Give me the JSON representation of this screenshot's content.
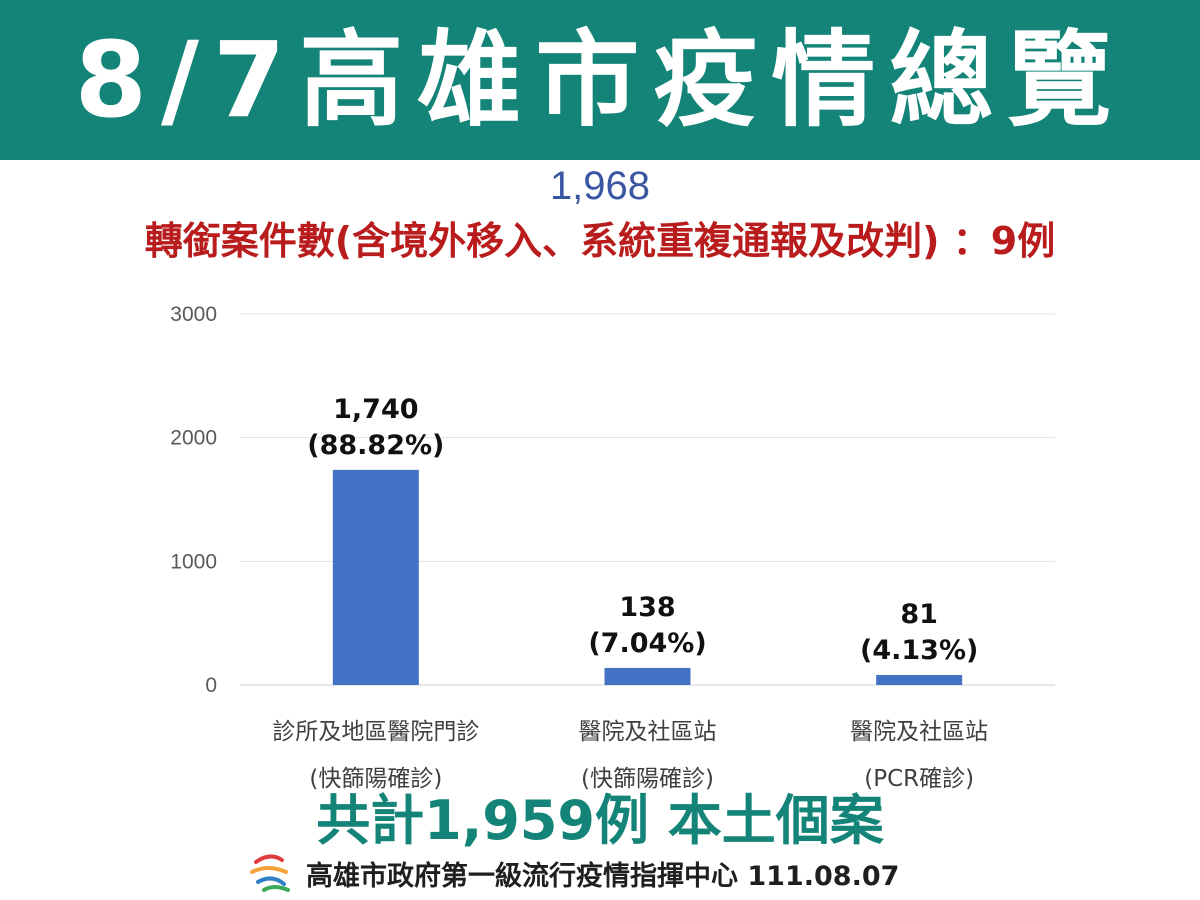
{
  "header": {
    "title": "8/7高雄市疫情總覽"
  },
  "total_cases": "1,968",
  "transfer_note": "轉銜案件數(含境外移入、系統重複通報及改判) ：9例",
  "summary": "共計1,959例 本土個案",
  "footer": {
    "org": "高雄市政府第一級流行疫情指揮中心 111.08.07"
  },
  "colors": {
    "banner": "#138477",
    "bar": "#4472c4",
    "total": "#3a56a2",
    "transfer": "#b91c1c",
    "summary": "#138477"
  },
  "chart_data": {
    "type": "bar",
    "categories": [
      [
        "診所及地區醫院門診",
        "(快篩陽確診)"
      ],
      [
        "醫院及社區站",
        "(快篩陽確診)"
      ],
      [
        "醫院及社區站",
        "(PCR確診)"
      ]
    ],
    "values": [
      1740,
      138,
      81
    ],
    "data_labels": [
      [
        "1,740",
        "(88.82%)"
      ],
      [
        "138",
        "(7.04%)"
      ],
      [
        "81",
        "(4.13%)"
      ]
    ],
    "y_ticks": [
      0,
      1000,
      2000,
      3000
    ],
    "ylim": [
      0,
      3000
    ],
    "grid": true,
    "legend": "none"
  }
}
